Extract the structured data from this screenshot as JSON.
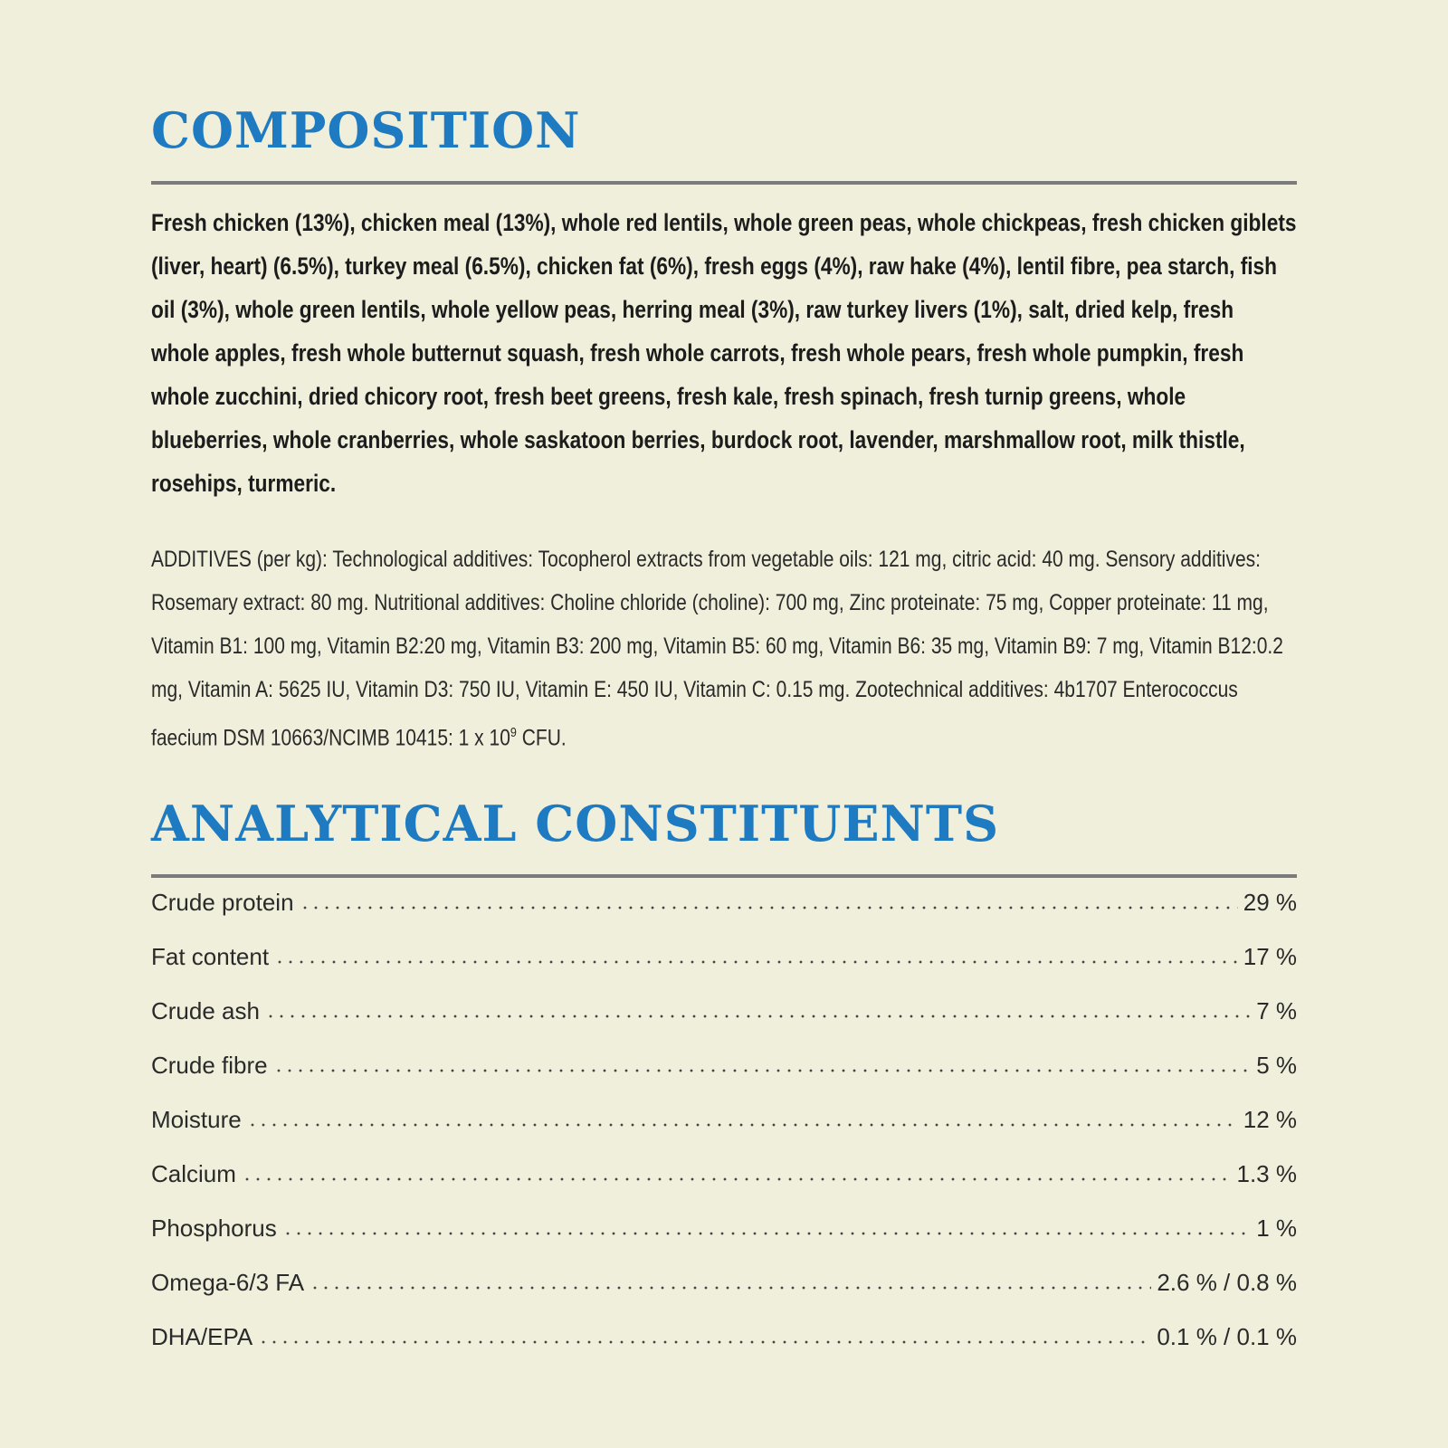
{
  "composition": {
    "title": "COMPOSITION",
    "ingredients": "Fresh chicken (13%), chicken meal (13%), whole red lentils, whole green peas, whole chickpeas, fresh chicken giblets (liver, heart) (6.5%), turkey meal (6.5%), chicken fat (6%), fresh eggs (4%), raw hake (4%), lentil fibre, pea starch, fish oil (3%), whole green lentils, whole yellow peas, herring meal (3%), raw turkey livers (1%), salt, dried kelp, fresh whole apples, fresh whole butternut squash, fresh whole carrots, fresh whole pears, fresh whole pumpkin, fresh whole zucchini, dried chicory root, fresh beet greens, fresh kale, fresh spinach, fresh turnip greens, whole blueberries, whole cranberries, whole saskatoon berries, burdock root, lavender, marshmallow root, milk thistle, rosehips, turmeric.",
    "additives": {
      "text": "ADDITIVES (per kg): Technological additives: Tocopherol extracts from vegetable oils: 121 mg, citric acid: 40 mg. Sensory additives: Rosemary extract: 80 mg. Nutritional additives: Choline chloride (choline): 700 mg, Zinc proteinate: 75 mg, Copper proteinate: 11 mg, Vitamin B1: 100 mg, Vitamin B2:20 mg, Vitamin B3: 200 mg, Vitamin B5: 60 mg, Vitamin B6: 35 mg, Vitamin B9: 7 mg, Vitamin B12:0.2 mg, Vitamin A: 5625 IU, Vitamin D3: 750 IU, Vitamin E: 450 IU, Vitamin C: 0.15 mg. Zootechnical additives: 4b1707 Enterococcus faecium DSM 10663/NCIMB 10415: 1 x 10",
      "superscript": "9",
      "end": " CFU."
    }
  },
  "analytical_constituents": {
    "title": "ANALYTICAL CONSTITUENTS",
    "rows": [
      [
        "Crude protein",
        "29 %"
      ],
      [
        "Fat content",
        "17 %"
      ],
      [
        "Crude ash",
        "7 %"
      ],
      [
        "Crude fibre",
        "5 %"
      ],
      [
        "Moisture",
        "12 %"
      ],
      [
        "Calcium",
        "1.3 %"
      ],
      [
        "Phosphorus",
        "1 %"
      ],
      [
        "Omega-6/3 FA",
        "2.6 % / 0.8 %"
      ],
      [
        "DHA/EPA",
        "0.1 % / 0.1 %"
      ]
    ]
  }
}
